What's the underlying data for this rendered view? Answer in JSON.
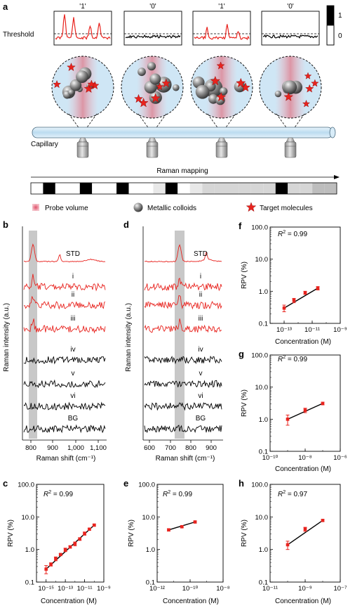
{
  "panel_a": {
    "letter": "a",
    "threshold_label": "Threshold",
    "window_labels": [
      "'1'",
      "'0'",
      "'1'",
      "'0'"
    ],
    "colorbar_labels": [
      "1",
      "0"
    ],
    "capillary_label": "Capillary",
    "mapping_label": "Raman mapping",
    "barcode": [
      0,
      1,
      0,
      0,
      1,
      0,
      0,
      1,
      0,
      0,
      0.2,
      1,
      0,
      0.2,
      0.3,
      0.3,
      0.3,
      0.3,
      0.3,
      0.3,
      1,
      0.3,
      0.3,
      0.4,
      0.4
    ],
    "legend": [
      "Probe volume",
      "Metallic colloids",
      "Target molecules"
    ]
  },
  "colors": {
    "red": "#e8231e",
    "black": "#000000",
    "shade": "#c8c8c8",
    "capillary": "#cfe6f5",
    "fit": "#000000"
  },
  "panel_b": {
    "letter": "b",
    "xlabel": "Raman shift (cm⁻¹)",
    "ylabel": "Raman intensity (a.u.)",
    "xticks": [
      "800",
      "900",
      "1,000",
      "1,100"
    ],
    "spectra": [
      "STD",
      "i",
      "ii",
      "iii",
      "iv",
      "v",
      "vi",
      "BG"
    ]
  },
  "panel_d": {
    "letter": "d",
    "xlabel": "Raman shift (cm⁻¹)",
    "ylabel": "Raman intensity (a.u.)",
    "xticks": [
      "600",
      "700",
      "800",
      "900"
    ],
    "spectra": [
      "STD",
      "i",
      "ii",
      "iii",
      "iv",
      "v",
      "vi",
      "BG"
    ]
  },
  "chart_data": [
    {
      "id": "c",
      "letter": "c",
      "type": "scatter",
      "r2": "0.99",
      "xlabel": "Concentration (M)",
      "ylabel": "RPV (%)",
      "xlog": true,
      "ylog": true,
      "xlim": [
        -16,
        -9
      ],
      "ylim": [
        -1,
        2
      ],
      "xticks": [
        {
          "e": -15,
          "label": "10⁻¹⁵"
        },
        {
          "e": -13,
          "label": "10⁻¹³"
        },
        {
          "e": -11,
          "label": "10⁻¹¹"
        },
        {
          "e": -9,
          "label": "10⁻⁹"
        }
      ],
      "yticks": [
        {
          "v": 0.1,
          "label": "0.1"
        },
        {
          "v": 1,
          "label": "1.0"
        },
        {
          "v": 10,
          "label": "10.0"
        },
        {
          "v": 100,
          "label": "100.0"
        }
      ],
      "x": [
        -15,
        -14.5,
        -14,
        -13.5,
        -13,
        -12.5,
        -12,
        -11.5,
        -11,
        -10.5,
        -10
      ],
      "y": [
        0.25,
        0.35,
        0.52,
        0.7,
        0.98,
        1.2,
        1.5,
        2.1,
        3.1,
        4.2,
        5.6
      ],
      "err": [
        0.07,
        0.04,
        0.07,
        0.05,
        0.12,
        0.1,
        0.2,
        0.2,
        0.35,
        0.3,
        0.35
      ]
    },
    {
      "id": "e",
      "letter": "e",
      "type": "scatter",
      "r2": "0.99",
      "xlabel": "Concentration (M)",
      "ylabel": "RPV (%)",
      "xlog": true,
      "ylog": true,
      "xlim": [
        -12,
        -8
      ],
      "ylim": [
        -1,
        2
      ],
      "xticks": [
        {
          "e": -12,
          "label": "10⁻¹²"
        },
        {
          "e": -10,
          "label": "10⁻¹⁰"
        },
        {
          "e": -8,
          "label": "10⁻⁸"
        }
      ],
      "yticks": [
        {
          "v": 0.1,
          "label": "0.1"
        },
        {
          "v": 1,
          "label": "1.0"
        },
        {
          "v": 10,
          "label": "10.0"
        },
        {
          "v": 100,
          "label": "100.0"
        }
      ],
      "x": [
        -11.3,
        -10.5,
        -9.7
      ],
      "y": [
        4.0,
        5.0,
        7.0
      ],
      "err": [
        0.3,
        0.3,
        0.45
      ]
    },
    {
      "id": "f",
      "letter": "f",
      "type": "scatter",
      "r2": "0.99",
      "xlabel": "Concentration (M)",
      "ylabel": "RPV (%)",
      "xlog": true,
      "ylog": true,
      "xlim": [
        -14,
        -9
      ],
      "ylim": [
        -1,
        2
      ],
      "xticks": [
        {
          "e": -13,
          "label": "10⁻¹³"
        },
        {
          "e": -11,
          "label": "10⁻¹¹"
        },
        {
          "e": -9,
          "label": "10⁻⁹"
        }
      ],
      "yticks": [
        {
          "v": 0.1,
          "label": "0.1"
        },
        {
          "v": 1,
          "label": "1.0"
        },
        {
          "v": 10,
          "label": "10.0"
        },
        {
          "v": 100,
          "label": "100.0"
        }
      ],
      "x": [
        -13,
        -12.3,
        -11.5,
        -10.6
      ],
      "y": [
        0.3,
        0.52,
        0.9,
        1.25
      ],
      "err": [
        0.07,
        0.08,
        0.1,
        0.15
      ]
    },
    {
      "id": "g",
      "letter": "g",
      "type": "scatter",
      "r2": "0.99",
      "xlabel": "Concentration (M)",
      "ylabel": "RPV (%)",
      "xlog": true,
      "ylog": true,
      "xlim": [
        -10,
        -6
      ],
      "ylim": [
        -1,
        2
      ],
      "xticks": [
        {
          "e": -10,
          "label": "10⁻¹⁰"
        },
        {
          "e": -8,
          "label": "10⁻⁸"
        },
        {
          "e": -6,
          "label": "10⁻⁶"
        }
      ],
      "yticks": [
        {
          "v": 0.1,
          "label": "0.1"
        },
        {
          "v": 1,
          "label": "1.0"
        },
        {
          "v": 10,
          "label": "10.0"
        },
        {
          "v": 100,
          "label": "100.0"
        }
      ],
      "x": [
        -9,
        -8,
        -7
      ],
      "y": [
        1.0,
        1.9,
        3.1
      ],
      "err": [
        0.35,
        0.3,
        0.3
      ]
    },
    {
      "id": "h",
      "letter": "h",
      "type": "scatter",
      "r2": "0.97",
      "xlabel": "Concentration (M)",
      "ylabel": "RPV (%)",
      "xlog": true,
      "ylog": true,
      "xlim": [
        -11,
        -7
      ],
      "ylim": [
        -1,
        2
      ],
      "xticks": [
        {
          "e": -11,
          "label": "10⁻¹¹"
        },
        {
          "e": -9,
          "label": "10⁻⁹"
        },
        {
          "e": -7,
          "label": "10⁻⁷"
        }
      ],
      "yticks": [
        {
          "v": 0.1,
          "label": "0.1"
        },
        {
          "v": 1,
          "label": "1.0"
        },
        {
          "v": 10,
          "label": "10.0"
        },
        {
          "v": 100,
          "label": "100.0"
        }
      ],
      "x": [
        -10,
        -9,
        -8
      ],
      "y": [
        1.4,
        4.2,
        7.8
      ],
      "err": [
        0.4,
        0.6,
        0.5
      ]
    }
  ]
}
